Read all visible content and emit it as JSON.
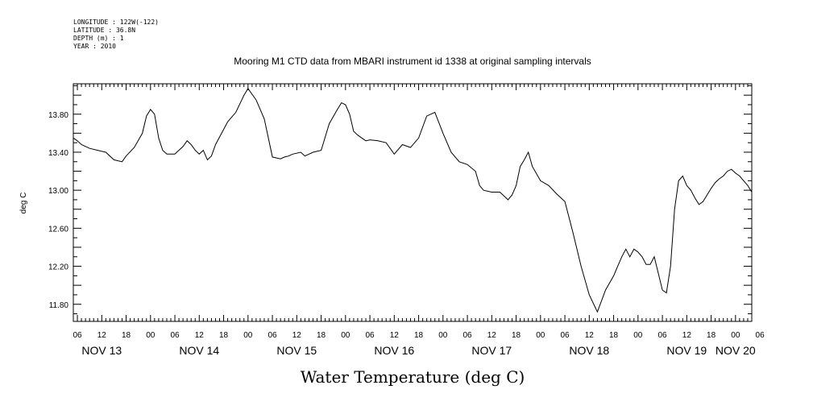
{
  "header": {
    "longitude": "LONGITUDE : 122W(-122)",
    "latitude": "LATITUDE : 36.8N",
    "depth": "DEPTH (m) : 1",
    "year": "YEAR : 2010"
  },
  "chart_data": {
    "type": "line",
    "title": "Mooring M1 CTD data from MBARI instrument id 1338 at original sampling intervals",
    "xlabel": "Water Temperature (deg C)",
    "ylabel": "deg C",
    "ylim": [
      11.62,
      14.12
    ],
    "yticks": [
      "13.80",
      "13.40",
      "13.00",
      "12.60",
      "12.20",
      "11.80"
    ],
    "x_units": "hours since Nov 13 00:00, 2010",
    "xlim": [
      5,
      172
    ],
    "hour_tick_labels": [
      "06",
      "12",
      "18",
      "00",
      "06",
      "12",
      "18",
      "00",
      "06",
      "12",
      "18",
      "00",
      "06",
      "12",
      "18",
      "00",
      "06",
      "12",
      "18",
      "00",
      "06",
      "12",
      "18",
      "00",
      "06",
      "12",
      "18",
      "00",
      "06"
    ],
    "day_labels": [
      "NOV 13",
      "NOV 14",
      "NOV 15",
      "NOV 16",
      "NOV 17",
      "NOV 18",
      "NOV 19",
      "NOV 20"
    ],
    "grid": false,
    "series": [
      {
        "x": [
          5,
          6,
          7,
          9,
          11,
          13,
          15,
          17,
          18,
          20,
          22,
          23,
          24,
          25,
          26,
          27,
          28,
          30,
          32,
          33,
          34,
          35,
          36,
          37,
          38,
          39,
          40,
          41,
          42,
          43,
          45,
          47,
          48,
          50,
          52,
          54,
          56,
          57,
          58,
          59,
          61,
          62,
          64,
          66,
          68,
          70,
          71,
          72,
          73,
          74,
          75,
          76,
          77,
          78,
          80,
          82,
          84,
          86,
          88,
          90,
          92,
          94,
          96,
          98,
          100,
          102,
          104,
          105,
          106,
          108,
          110,
          112,
          113,
          114,
          115,
          116,
          117,
          118,
          120,
          122,
          124,
          126,
          128,
          130,
          132,
          134,
          136,
          138,
          139,
          140,
          141,
          142,
          143,
          144,
          145,
          146,
          147,
          148,
          150,
          151,
          152,
          153,
          154,
          155,
          156,
          157,
          158,
          159,
          160,
          161,
          162,
          163,
          164,
          165,
          166,
          167,
          168,
          169,
          170,
          171,
          172
        ],
        "values": [
          13.55,
          13.52,
          13.48,
          13.44,
          13.42,
          13.4,
          13.32,
          13.3,
          13.36,
          13.45,
          13.6,
          13.78,
          13.85,
          13.8,
          13.55,
          13.42,
          13.38,
          13.38,
          13.46,
          13.52,
          13.48,
          13.42,
          13.38,
          13.42,
          13.32,
          13.36,
          13.48,
          13.56,
          13.64,
          13.72,
          13.82,
          14.0,
          14.07,
          13.95,
          13.75,
          13.35,
          13.33,
          13.35,
          13.36,
          13.38,
          13.4,
          13.36,
          13.4,
          13.42,
          13.7,
          13.85,
          13.92,
          13.9,
          13.8,
          13.62,
          13.58,
          13.55,
          13.52,
          13.53,
          13.52,
          13.5,
          13.38,
          13.48,
          13.45,
          13.55,
          13.78,
          13.82,
          13.6,
          13.4,
          13.3,
          13.27,
          13.2,
          13.05,
          13.0,
          12.98,
          12.98,
          12.9,
          12.95,
          13.05,
          13.25,
          13.32,
          13.4,
          13.25,
          13.1,
          13.05,
          12.96,
          12.88,
          12.55,
          12.2,
          11.9,
          11.72,
          11.95,
          12.1,
          12.2,
          12.3,
          12.38,
          12.3,
          12.38,
          12.35,
          12.3,
          12.22,
          12.22,
          12.3,
          11.95,
          11.92,
          12.2,
          12.8,
          13.1,
          13.15,
          13.05,
          13.0,
          12.92,
          12.85,
          12.88,
          12.95,
          13.02,
          13.08,
          13.12,
          13.15,
          13.2,
          13.22,
          13.18,
          13.15,
          13.1,
          13.05,
          12.98
        ]
      }
    ]
  }
}
